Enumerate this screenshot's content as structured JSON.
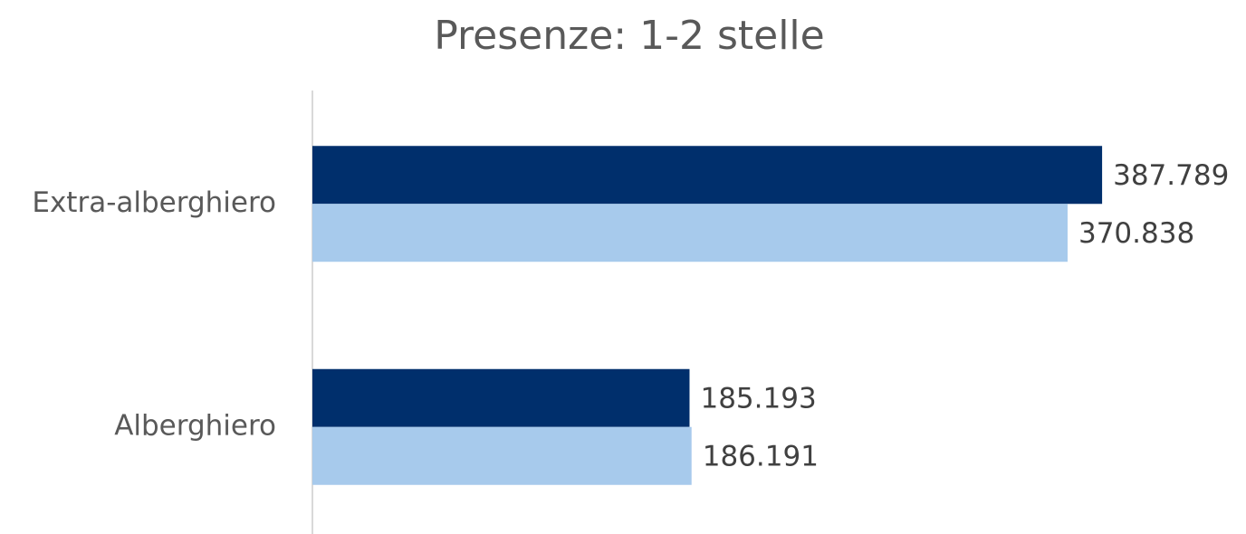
{
  "chart_data": {
    "type": "bar",
    "orientation": "horizontal",
    "title": "Presenze: 1-2 stelle",
    "categories": [
      "Extra-alberghiero",
      "Alberghiero"
    ],
    "series": [
      {
        "color": "#002f6c",
        "values": [
          387789,
          185193
        ],
        "value_labels": [
          "387.789",
          "185.193"
        ]
      },
      {
        "color": "#a7caec",
        "values": [
          370838,
          186191
        ],
        "value_labels": [
          "370.838",
          "186.191"
        ]
      }
    ],
    "xlim": [
      0,
      450000
    ]
  }
}
